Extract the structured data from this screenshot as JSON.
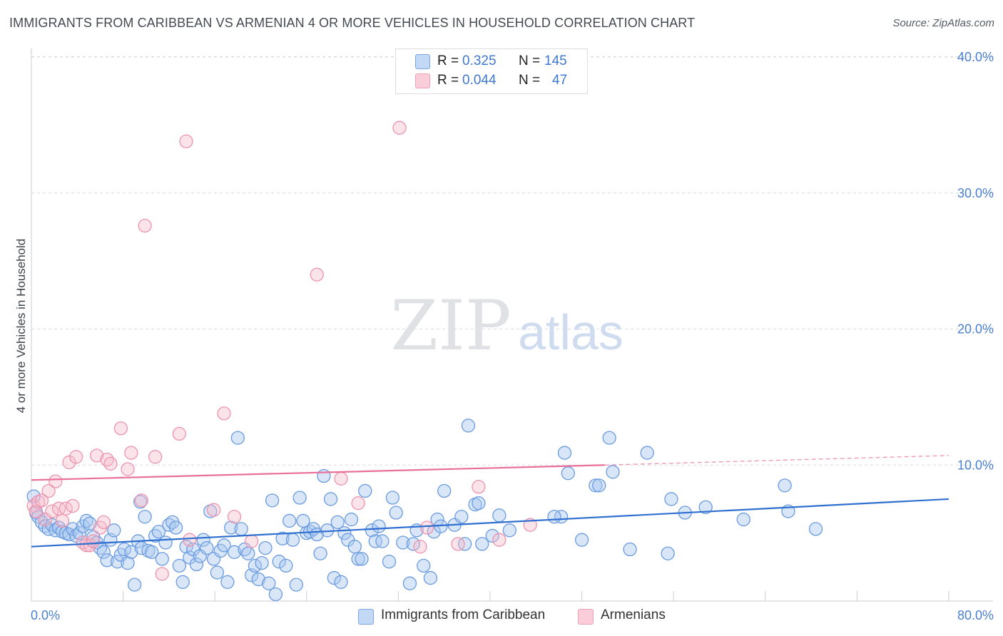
{
  "title": "IMMIGRANTS FROM CARIBBEAN VS ARMENIAN 4 OR MORE VEHICLES IN HOUSEHOLD CORRELATION CHART",
  "source": "Source: ZipAtlas.com",
  "watermark": {
    "zip": "ZIP",
    "atlas": "atlas"
  },
  "colors": {
    "blue_fill": "#a9c8f0",
    "blue_stroke": "#6a9be0",
    "blue_line": "#2f6fd0",
    "pink_fill": "#f6b8cb",
    "pink_stroke": "#ec94b0",
    "pink_line": "#e8709a",
    "grid": "#d8dce2",
    "tick_text": "#4a7fd0"
  },
  "legend": {
    "series": [
      {
        "r_label": "R =",
        "r_value": "0.325",
        "n_label": "N =",
        "n_value": "145"
      },
      {
        "r_label": "R =",
        "r_value": "0.044",
        "n_label": "N =",
        "n_value": "47"
      }
    ],
    "bottom": [
      "Immigrants from Caribbean",
      "Armenians"
    ]
  },
  "chart_data": {
    "type": "scatter",
    "title": "IMMIGRANTS FROM CARIBBEAN VS ARMENIAN 4 OR MORE VEHICLES IN HOUSEHOLD CORRELATION CHART",
    "xlabel": "",
    "ylabel": "4 or more Vehicles in Household",
    "xlim": [
      0,
      80
    ],
    "ylim": [
      0,
      40
    ],
    "x_tick_labels": [
      "0.0%",
      "80.0%"
    ],
    "y_tick_labels": [
      "10.0%",
      "20.0%",
      "30.0%",
      "40.0%"
    ],
    "y_ticks": [
      10,
      20,
      30,
      40
    ],
    "series": [
      {
        "name": "Immigrants from Caribbean",
        "color": "blue",
        "R": 0.325,
        "N": 145,
        "trend": {
          "x": [
            0,
            80
          ],
          "y": [
            4.0,
            7.5
          ]
        },
        "points": [
          [
            0.2,
            7.7
          ],
          [
            0.4,
            6.5
          ],
          [
            0.6,
            6.2
          ],
          [
            0.9,
            5.8
          ],
          [
            1.2,
            5.5
          ],
          [
            1.5,
            5.3
          ],
          [
            1.8,
            5.6
          ],
          [
            2.1,
            5.2
          ],
          [
            2.4,
            5.4
          ],
          [
            2.7,
            5.1
          ],
          [
            3.0,
            5.0
          ],
          [
            3.3,
            4.9
          ],
          [
            3.6,
            5.3
          ],
          [
            3.9,
            4.8
          ],
          [
            4.2,
            5.0
          ],
          [
            4.5,
            5.5
          ],
          [
            4.8,
            5.9
          ],
          [
            5.1,
            5.7
          ],
          [
            5.4,
            4.7
          ],
          [
            5.7,
            4.3
          ],
          [
            6.0,
            3.9
          ],
          [
            6.3,
            3.6
          ],
          [
            6.6,
            3.0
          ],
          [
            6.9,
            4.5
          ],
          [
            7.2,
            5.2
          ],
          [
            7.5,
            2.9
          ],
          [
            7.8,
            3.4
          ],
          [
            8.1,
            3.8
          ],
          [
            8.4,
            2.8
          ],
          [
            8.7,
            3.6
          ],
          [
            9.0,
            1.2
          ],
          [
            9.3,
            4.4
          ],
          [
            9.6,
            3.9
          ],
          [
            9.9,
            6.2
          ],
          [
            10.2,
            3.7
          ],
          [
            10.5,
            3.6
          ],
          [
            10.8,
            4.8
          ],
          [
            11.1,
            5.1
          ],
          [
            11.4,
            3.1
          ],
          [
            11.7,
            4.3
          ],
          [
            12.0,
            5.6
          ],
          [
            12.3,
            5.8
          ],
          [
            12.6,
            5.4
          ],
          [
            12.9,
            2.6
          ],
          [
            13.2,
            1.4
          ],
          [
            13.5,
            4.0
          ],
          [
            13.8,
            3.2
          ],
          [
            14.1,
            3.8
          ],
          [
            14.4,
            2.7
          ],
          [
            14.7,
            3.3
          ],
          [
            15.0,
            4.5
          ],
          [
            15.3,
            3.9
          ],
          [
            15.6,
            6.6
          ],
          [
            15.9,
            3.1
          ],
          [
            16.2,
            2.1
          ],
          [
            16.5,
            3.7
          ],
          [
            16.8,
            4.1
          ],
          [
            17.1,
            1.4
          ],
          [
            17.4,
            5.4
          ],
          [
            17.7,
            3.6
          ],
          [
            18.0,
            12.0
          ],
          [
            18.3,
            5.3
          ],
          [
            18.6,
            3.8
          ],
          [
            18.9,
            3.5
          ],
          [
            19.2,
            1.9
          ],
          [
            19.5,
            2.6
          ],
          [
            19.8,
            1.6
          ],
          [
            20.1,
            2.8
          ],
          [
            20.4,
            3.9
          ],
          [
            20.7,
            1.3
          ],
          [
            21.0,
            7.4
          ],
          [
            21.3,
            0.5
          ],
          [
            21.6,
            2.9
          ],
          [
            21.9,
            4.6
          ],
          [
            22.2,
            2.6
          ],
          [
            22.5,
            5.9
          ],
          [
            22.8,
            4.5
          ],
          [
            23.1,
            1.2
          ],
          [
            23.4,
            7.6
          ],
          [
            23.7,
            5.9
          ],
          [
            24.0,
            5.0
          ],
          [
            24.3,
            5.1
          ],
          [
            24.6,
            5.3
          ],
          [
            24.9,
            4.9
          ],
          [
            25.2,
            3.5
          ],
          [
            25.5,
            9.2
          ],
          [
            25.8,
            5.2
          ],
          [
            26.1,
            7.5
          ],
          [
            26.4,
            1.7
          ],
          [
            26.7,
            5.8
          ],
          [
            27.0,
            1.4
          ],
          [
            27.3,
            5.0
          ],
          [
            27.6,
            4.5
          ],
          [
            27.9,
            6.0
          ],
          [
            28.2,
            4.0
          ],
          [
            28.5,
            3.1
          ],
          [
            28.8,
            3.1
          ],
          [
            29.1,
            8.1
          ],
          [
            29.7,
            5.2
          ],
          [
            30.0,
            4.4
          ],
          [
            30.3,
            5.5
          ],
          [
            30.6,
            4.4
          ],
          [
            31.2,
            2.9
          ],
          [
            31.5,
            7.6
          ],
          [
            31.8,
            6.5
          ],
          [
            32.4,
            4.3
          ],
          [
            33.0,
            1.3
          ],
          [
            33.3,
            4.2
          ],
          [
            33.6,
            5.2
          ],
          [
            34.2,
            2.6
          ],
          [
            34.8,
            1.7
          ],
          [
            35.1,
            5.1
          ],
          [
            35.4,
            6.0
          ],
          [
            35.7,
            5.5
          ],
          [
            36.0,
            8.1
          ],
          [
            36.9,
            5.6
          ],
          [
            37.5,
            6.2
          ],
          [
            37.8,
            4.2
          ],
          [
            38.1,
            12.9
          ],
          [
            38.7,
            7.1
          ],
          [
            39.0,
            7.2
          ],
          [
            39.3,
            4.2
          ],
          [
            40.2,
            4.8
          ],
          [
            40.8,
            6.3
          ],
          [
            41.7,
            5.2
          ],
          [
            46.2,
            6.2
          ],
          [
            46.5,
            10.9
          ],
          [
            46.8,
            9.4
          ],
          [
            48.0,
            4.5
          ],
          [
            49.2,
            8.5
          ],
          [
            49.5,
            8.5
          ],
          [
            50.4,
            12.0
          ],
          [
            50.7,
            9.5
          ],
          [
            52.2,
            3.8
          ],
          [
            53.7,
            10.9
          ],
          [
            55.5,
            3.5
          ],
          [
            55.8,
            7.5
          ],
          [
            57.0,
            6.5
          ],
          [
            58.8,
            6.9
          ],
          [
            62.1,
            6.0
          ],
          [
            65.7,
            8.5
          ],
          [
            66.0,
            6.6
          ],
          [
            68.4,
            5.3
          ],
          [
            45.6,
            6.2
          ],
          [
            9.5,
            7.3
          ]
        ]
      },
      {
        "name": "Armenians",
        "color": "pink",
        "R": 0.044,
        "N": 47,
        "trend": {
          "x": [
            0,
            50
          ],
          "y": [
            8.9,
            10.0
          ]
        },
        "trend_dashed": {
          "x": [
            50,
            80
          ],
          "y": [
            10.0,
            10.7
          ]
        },
        "points": [
          [
            0.2,
            7.0
          ],
          [
            0.4,
            6.6
          ],
          [
            0.6,
            7.3
          ],
          [
            0.9,
            7.4
          ],
          [
            1.2,
            6.0
          ],
          [
            1.5,
            8.1
          ],
          [
            1.8,
            6.6
          ],
          [
            2.1,
            8.8
          ],
          [
            2.4,
            6.8
          ],
          [
            2.7,
            5.9
          ],
          [
            3.0,
            6.8
          ],
          [
            3.3,
            10.2
          ],
          [
            3.6,
            7.0
          ],
          [
            3.9,
            10.6
          ],
          [
            4.5,
            4.3
          ],
          [
            4.8,
            4.1
          ],
          [
            5.1,
            4.1
          ],
          [
            5.4,
            4.4
          ],
          [
            5.7,
            10.7
          ],
          [
            6.0,
            5.4
          ],
          [
            6.3,
            5.8
          ],
          [
            6.6,
            10.4
          ],
          [
            6.9,
            10.1
          ],
          [
            7.8,
            12.7
          ],
          [
            8.4,
            9.7
          ],
          [
            8.7,
            10.9
          ],
          [
            9.6,
            7.4
          ],
          [
            9.9,
            27.6
          ],
          [
            10.8,
            10.6
          ],
          [
            11.4,
            2.0
          ],
          [
            12.9,
            12.3
          ],
          [
            13.5,
            33.8
          ],
          [
            13.8,
            4.5
          ],
          [
            15.9,
            6.7
          ],
          [
            16.8,
            13.8
          ],
          [
            17.7,
            6.2
          ],
          [
            19.2,
            4.4
          ],
          [
            24.9,
            24.0
          ],
          [
            27.0,
            9.0
          ],
          [
            28.5,
            7.2
          ],
          [
            32.1,
            34.8
          ],
          [
            33.9,
            4.0
          ],
          [
            34.5,
            5.4
          ],
          [
            37.2,
            4.2
          ],
          [
            39.0,
            8.4
          ],
          [
            40.8,
            4.5
          ],
          [
            43.5,
            5.6
          ]
        ]
      }
    ]
  }
}
